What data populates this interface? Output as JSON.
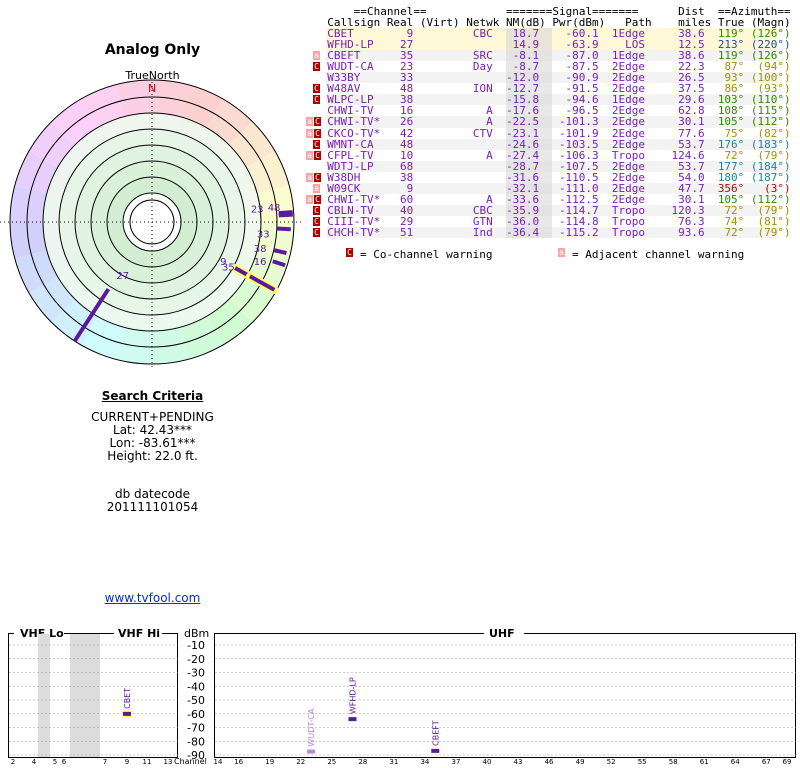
{
  "radar": {
    "title": "Analog Only",
    "true_north_label": "TrueNorth",
    "north_letter": "N",
    "markers": [
      {
        "label": "23",
        "channel": 23,
        "azimuth_true": 87
      },
      {
        "label": "48",
        "channel": 48,
        "azimuth_true": 86
      },
      {
        "label": "33",
        "channel": 33,
        "azimuth_true": 93
      },
      {
        "label": "38",
        "channel": 38,
        "azimuth_true": 103
      },
      {
        "label": "16",
        "channel": 16,
        "azimuth_true": 108
      },
      {
        "label": "9",
        "channel": 9,
        "azimuth_true": 119
      },
      {
        "label": "35",
        "channel": 35,
        "azimuth_true": 119
      },
      {
        "label": "27",
        "channel": 27,
        "azimuth_true": 213
      }
    ]
  },
  "criteria": {
    "heading": "Search Criteria",
    "mode": "CURRENT+PENDING",
    "lat": "Lat: 42.43***",
    "lon": "Lon: -83.61***",
    "height": "Height: 22.0 ft."
  },
  "db_datecode": {
    "label": "db datecode",
    "value": "201111101054"
  },
  "site_link": "www.tvfool.com",
  "table": {
    "group_headers": {
      "channel": "==Channel==",
      "signal": "=======Signal=======",
      "azimuth": "==Azimuth=="
    },
    "dist_header": "Dist",
    "columns": [
      "Callsign",
      "Real",
      "(Virt)",
      "Netwk",
      "NM(dB)",
      "Pwr(dBm)",
      "Path",
      "miles",
      "True",
      "(Magn)"
    ],
    "rows": [
      {
        "badges": [],
        "callsign": "CBET",
        "real": "9",
        "virt": "",
        "netwk": "CBC",
        "nm": "18.7",
        "pwr": "-60.1",
        "path": "1Edge",
        "dist": "38.6",
        "true": "119°",
        "magn": "(126°)",
        "az_color": "#2e8b00",
        "row_bg": "#fff8d6"
      },
      {
        "badges": [],
        "callsign": "WFHD-LP",
        "real": "27",
        "virt": "",
        "netwk": "",
        "nm": "14.9",
        "pwr": "-63.9",
        "path": "LOS",
        "dist": "12.5",
        "true": "213°",
        "magn": "(220°)",
        "az_color": "#2050a0",
        "row_bg": "#fff8d6"
      },
      {
        "badges": [
          "a"
        ],
        "callsign": "CBEFT",
        "real": "35",
        "virt": "",
        "netwk": "SRC",
        "nm": "-8.1",
        "pwr": "-87.0",
        "path": "1Edge",
        "dist": "38.6",
        "true": "119°",
        "magn": "(126°)",
        "az_color": "#2e8b00",
        "row_bg": "#f3f3f3"
      },
      {
        "badges": [
          "c"
        ],
        "callsign": "WUDT-CA",
        "real": "23",
        "virt": "",
        "netwk": "Day",
        "nm": "-8.7",
        "pwr": "-87.5",
        "path": "2Edge",
        "dist": "22.3",
        "true": "87°",
        "magn": "(94°)",
        "az_color": "#a09000",
        "row_bg": "#ffffff"
      },
      {
        "badges": [],
        "callsign": "W33BY",
        "real": "33",
        "virt": "",
        "netwk": "",
        "nm": "-12.0",
        "pwr": "-90.9",
        "path": "2Edge",
        "dist": "26.5",
        "true": "93°",
        "magn": "(100°)",
        "az_color": "#a09000",
        "row_bg": "#f3f3f3"
      },
      {
        "badges": [
          "c"
        ],
        "callsign": "W48AV",
        "real": "48",
        "virt": "",
        "netwk": "ION",
        "nm": "-12.7",
        "pwr": "-91.5",
        "path": "2Edge",
        "dist": "37.5",
        "true": "86°",
        "magn": "(93°)",
        "az_color": "#a09000",
        "row_bg": "#ffffff"
      },
      {
        "badges": [
          "c"
        ],
        "callsign": "WLPC-LP",
        "real": "38",
        "virt": "",
        "netwk": "",
        "nm": "-15.8",
        "pwr": "-94.6",
        "path": "1Edge",
        "dist": "29.6",
        "true": "103°",
        "magn": "(110°)",
        "az_color": "#2e8b00",
        "row_bg": "#f3f3f3"
      },
      {
        "badges": [],
        "callsign": "CHWI-TV",
        "real": "16",
        "virt": "",
        "netwk": "A",
        "nm": "-17.6",
        "pwr": "-96.5",
        "path": "2Edge",
        "dist": "62.8",
        "true": "108°",
        "magn": "(115°)",
        "az_color": "#2e8b00",
        "row_bg": "#ffffff"
      },
      {
        "badges": [
          "a",
          "c"
        ],
        "callsign": "CHWI-TV*",
        "real": "26",
        "virt": "",
        "netwk": "A",
        "nm": "-22.5",
        "pwr": "-101.3",
        "path": "2Edge",
        "dist": "30.1",
        "true": "105°",
        "magn": "(112°)",
        "az_color": "#2e8b00",
        "row_bg": "#f3f3f3"
      },
      {
        "badges": [
          "a",
          "c"
        ],
        "callsign": "CKCO-TV*",
        "real": "42",
        "virt": "",
        "netwk": "CTV",
        "nm": "-23.1",
        "pwr": "-101.9",
        "path": "2Edge",
        "dist": "77.6",
        "true": "75°",
        "magn": "(82°)",
        "az_color": "#a09000",
        "row_bg": "#ffffff"
      },
      {
        "badges": [
          "c"
        ],
        "callsign": "WMNT-CA",
        "real": "48",
        "virt": "",
        "netwk": "",
        "nm": "-24.6",
        "pwr": "-103.5",
        "path": "2Edge",
        "dist": "53.7",
        "true": "176°",
        "magn": "(183°)",
        "az_color": "#2080a0",
        "row_bg": "#f3f3f3"
      },
      {
        "badges": [
          "a",
          "c"
        ],
        "callsign": "CFPL-TV",
        "real": "10",
        "virt": "",
        "netwk": "A",
        "nm": "-27.4",
        "pwr": "-106.3",
        "path": "Tropo",
        "dist": "124.6",
        "true": "72°",
        "magn": "(79°)",
        "az_color": "#a09000",
        "row_bg": "#ffffff"
      },
      {
        "badges": [],
        "callsign": "WDTJ-LP",
        "real": "68",
        "virt": "",
        "netwk": "",
        "nm": "-28.7",
        "pwr": "-107.5",
        "path": "2Edge",
        "dist": "53.7",
        "true": "177°",
        "magn": "(184°)",
        "az_color": "#2080a0",
        "row_bg": "#f3f3f3"
      },
      {
        "badges": [
          "a",
          "c"
        ],
        "callsign": "W38DH",
        "real": "38",
        "virt": "",
        "netwk": "",
        "nm": "-31.6",
        "pwr": "-110.5",
        "path": "2Edge",
        "dist": "54.0",
        "true": "180°",
        "magn": "(187°)",
        "az_color": "#2080a0",
        "row_bg": "#ffffff"
      },
      {
        "badges": [
          "a"
        ],
        "callsign": "W09CK",
        "real": "9",
        "virt": "",
        "netwk": "",
        "nm": "-32.1",
        "pwr": "-111.0",
        "path": "2Edge",
        "dist": "47.7",
        "true": "356°",
        "magn": "(3°)",
        "az_color": "#c00000",
        "row_bg": "#f3f3f3"
      },
      {
        "badges": [
          "a",
          "c"
        ],
        "callsign": "CHWI-TV*",
        "real": "60",
        "virt": "",
        "netwk": "A",
        "nm": "-33.6",
        "pwr": "-112.5",
        "path": "2Edge",
        "dist": "30.1",
        "true": "105°",
        "magn": "(112°)",
        "az_color": "#2e8b00",
        "row_bg": "#ffffff"
      },
      {
        "badges": [
          "c"
        ],
        "callsign": "CBLN-TV",
        "real": "40",
        "virt": "",
        "netwk": "CBC",
        "nm": "-35.9",
        "pwr": "-114.7",
        "path": "Tropo",
        "dist": "120.3",
        "true": "72°",
        "magn": "(79°)",
        "az_color": "#a09000",
        "row_bg": "#f3f3f3"
      },
      {
        "badges": [
          "c"
        ],
        "callsign": "CIII-TV*",
        "real": "29",
        "virt": "",
        "netwk": "GTN",
        "nm": "-36.0",
        "pwr": "-114.8",
        "path": "Tropo",
        "dist": "76.3",
        "true": "74°",
        "magn": "(81°)",
        "az_color": "#a09000",
        "row_bg": "#ffffff"
      },
      {
        "badges": [
          "c"
        ],
        "callsign": "CHCH-TV*",
        "real": "51",
        "virt": "",
        "netwk": "Ind",
        "nm": "-36.4",
        "pwr": "-115.2",
        "path": "Tropo",
        "dist": "93.6",
        "true": "72°",
        "magn": "(79°)",
        "az_color": "#a09000",
        "row_bg": "#f3f3f3"
      }
    ]
  },
  "legend": {
    "co_badge": "C",
    "co_text": "= Co-channel warning",
    "adj_badge": "a",
    "adj_text": "= Adjacent channel warning"
  },
  "colors": {
    "callsign": "#7a1fb0",
    "marker": "#5b1a9e",
    "marker_highlight": "#ffff66",
    "band_shade": "#dcdcdc",
    "badge_c": "#b00000",
    "badge_a": "#f4a6a6"
  },
  "spectrum": {
    "vhf_lo_label": "VHF Lo",
    "vhf_hi_label": "VHF Hi",
    "uhf_label": "UHF",
    "dbm_label": "dBm",
    "channel_label": "Channel",
    "dbm_ticks": [
      "-10",
      "-20",
      "-30",
      "-40",
      "-50",
      "-60",
      "-70",
      "-80",
      "-90"
    ],
    "vhf_lo_channels": [
      "2",
      "4",
      "5",
      "6"
    ],
    "vhf_hi_channels": [
      "7",
      "9",
      "11",
      "13"
    ],
    "uhf_channels": [
      "14",
      "16",
      "19",
      "22",
      "25",
      "28",
      "31",
      "34",
      "37",
      "40",
      "43",
      "46",
      "49",
      "52",
      "55",
      "58",
      "61",
      "64",
      "67",
      "69"
    ],
    "stations": [
      {
        "label": "CBET",
        "channel": 9,
        "pwr": -60.1,
        "style": "highlight"
      },
      {
        "label": "WFHD-LP",
        "channel": 27,
        "pwr": -63.9,
        "style": "strong"
      },
      {
        "label": "WUDT-CA",
        "channel": 23,
        "pwr": -87.5,
        "style": "faint"
      },
      {
        "label": "CBEFT",
        "channel": 35,
        "pwr": -87.0,
        "style": "strong"
      }
    ]
  }
}
